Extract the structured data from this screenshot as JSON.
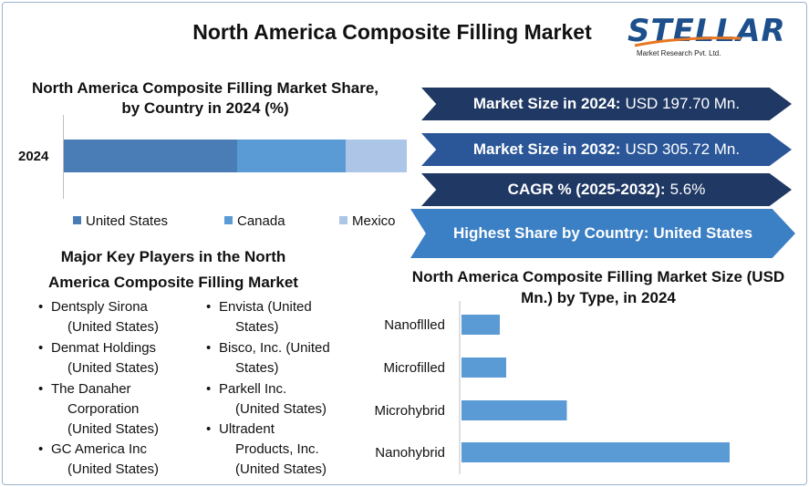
{
  "header": {
    "title": "North America Composite Filling Market"
  },
  "logo": {
    "word": "STELLAR",
    "subtitle": "Market Research Pvt. Ltd."
  },
  "share_chart": {
    "title": "North America Composite Filling Market Share, by Country in 2024 (%)",
    "year_label": "2024"
  },
  "info_arrows": [
    {
      "label": "Market Size in 2024:",
      "value": "USD 197.70 Mn.",
      "color": "#1f3864"
    },
    {
      "label": "Market Size in 2032:",
      "value": "USD 305.72 Mn.",
      "color": "#2b5799"
    },
    {
      "label": "CAGR % (2025-2032):",
      "value": "5.6%",
      "color": "#1f3864"
    },
    {
      "label": "Highest Share by Country:",
      "value": "United States",
      "color": "#3b7fc4"
    }
  ],
  "players": {
    "title": "Major Key Players in the North America Composite Filling Market",
    "left": [
      {
        "line1": "Dentsply Sirona",
        "line2": "(United States)"
      },
      {
        "line1": "Denmat Holdings",
        "line2": "(United States)"
      },
      {
        "line1": "The Danaher",
        "line2": "Corporation",
        "line3": "(United States)"
      },
      {
        "line1": "GC America Inc",
        "line2": "(United States)"
      }
    ],
    "right": [
      {
        "line1": "Envista (United",
        "line2": "States)"
      },
      {
        "line1": "Bisco, Inc. (United",
        "line2": "States)"
      },
      {
        "line1": "Parkell Inc.",
        "line2": "(United States)"
      },
      {
        "line1": "Ultradent",
        "line2": "Products, Inc.",
        "line3": "(United States)"
      }
    ]
  },
  "chart_data": [
    {
      "type": "bar",
      "orientation": "horizontal",
      "stacked": true,
      "title": "North America Composite Filling Market Share, by Country in 2024 (%)",
      "categories": [
        "2024"
      ],
      "series": [
        {
          "name": "United States",
          "values": [
            50.5
          ],
          "color": "#4a7db5"
        },
        {
          "name": "Canada",
          "values": [
            31.8
          ],
          "color": "#5b9bd5"
        },
        {
          "name": "Mexico",
          "values": [
            17.7
          ],
          "color": "#adc6e8"
        }
      ],
      "legend": "bottom"
    },
    {
      "type": "bar",
      "orientation": "horizontal",
      "title": "North America Composite Filling Market Size (USD Mn.) by Type, in 2024",
      "categories": [
        "Nanofllled",
        "Microfilled",
        "Microhybrid",
        "Nanohybrid"
      ],
      "values": [
        12,
        14,
        33,
        84
      ],
      "color": "#5b9bd5",
      "xlim": [
        0,
        100
      ]
    }
  ]
}
